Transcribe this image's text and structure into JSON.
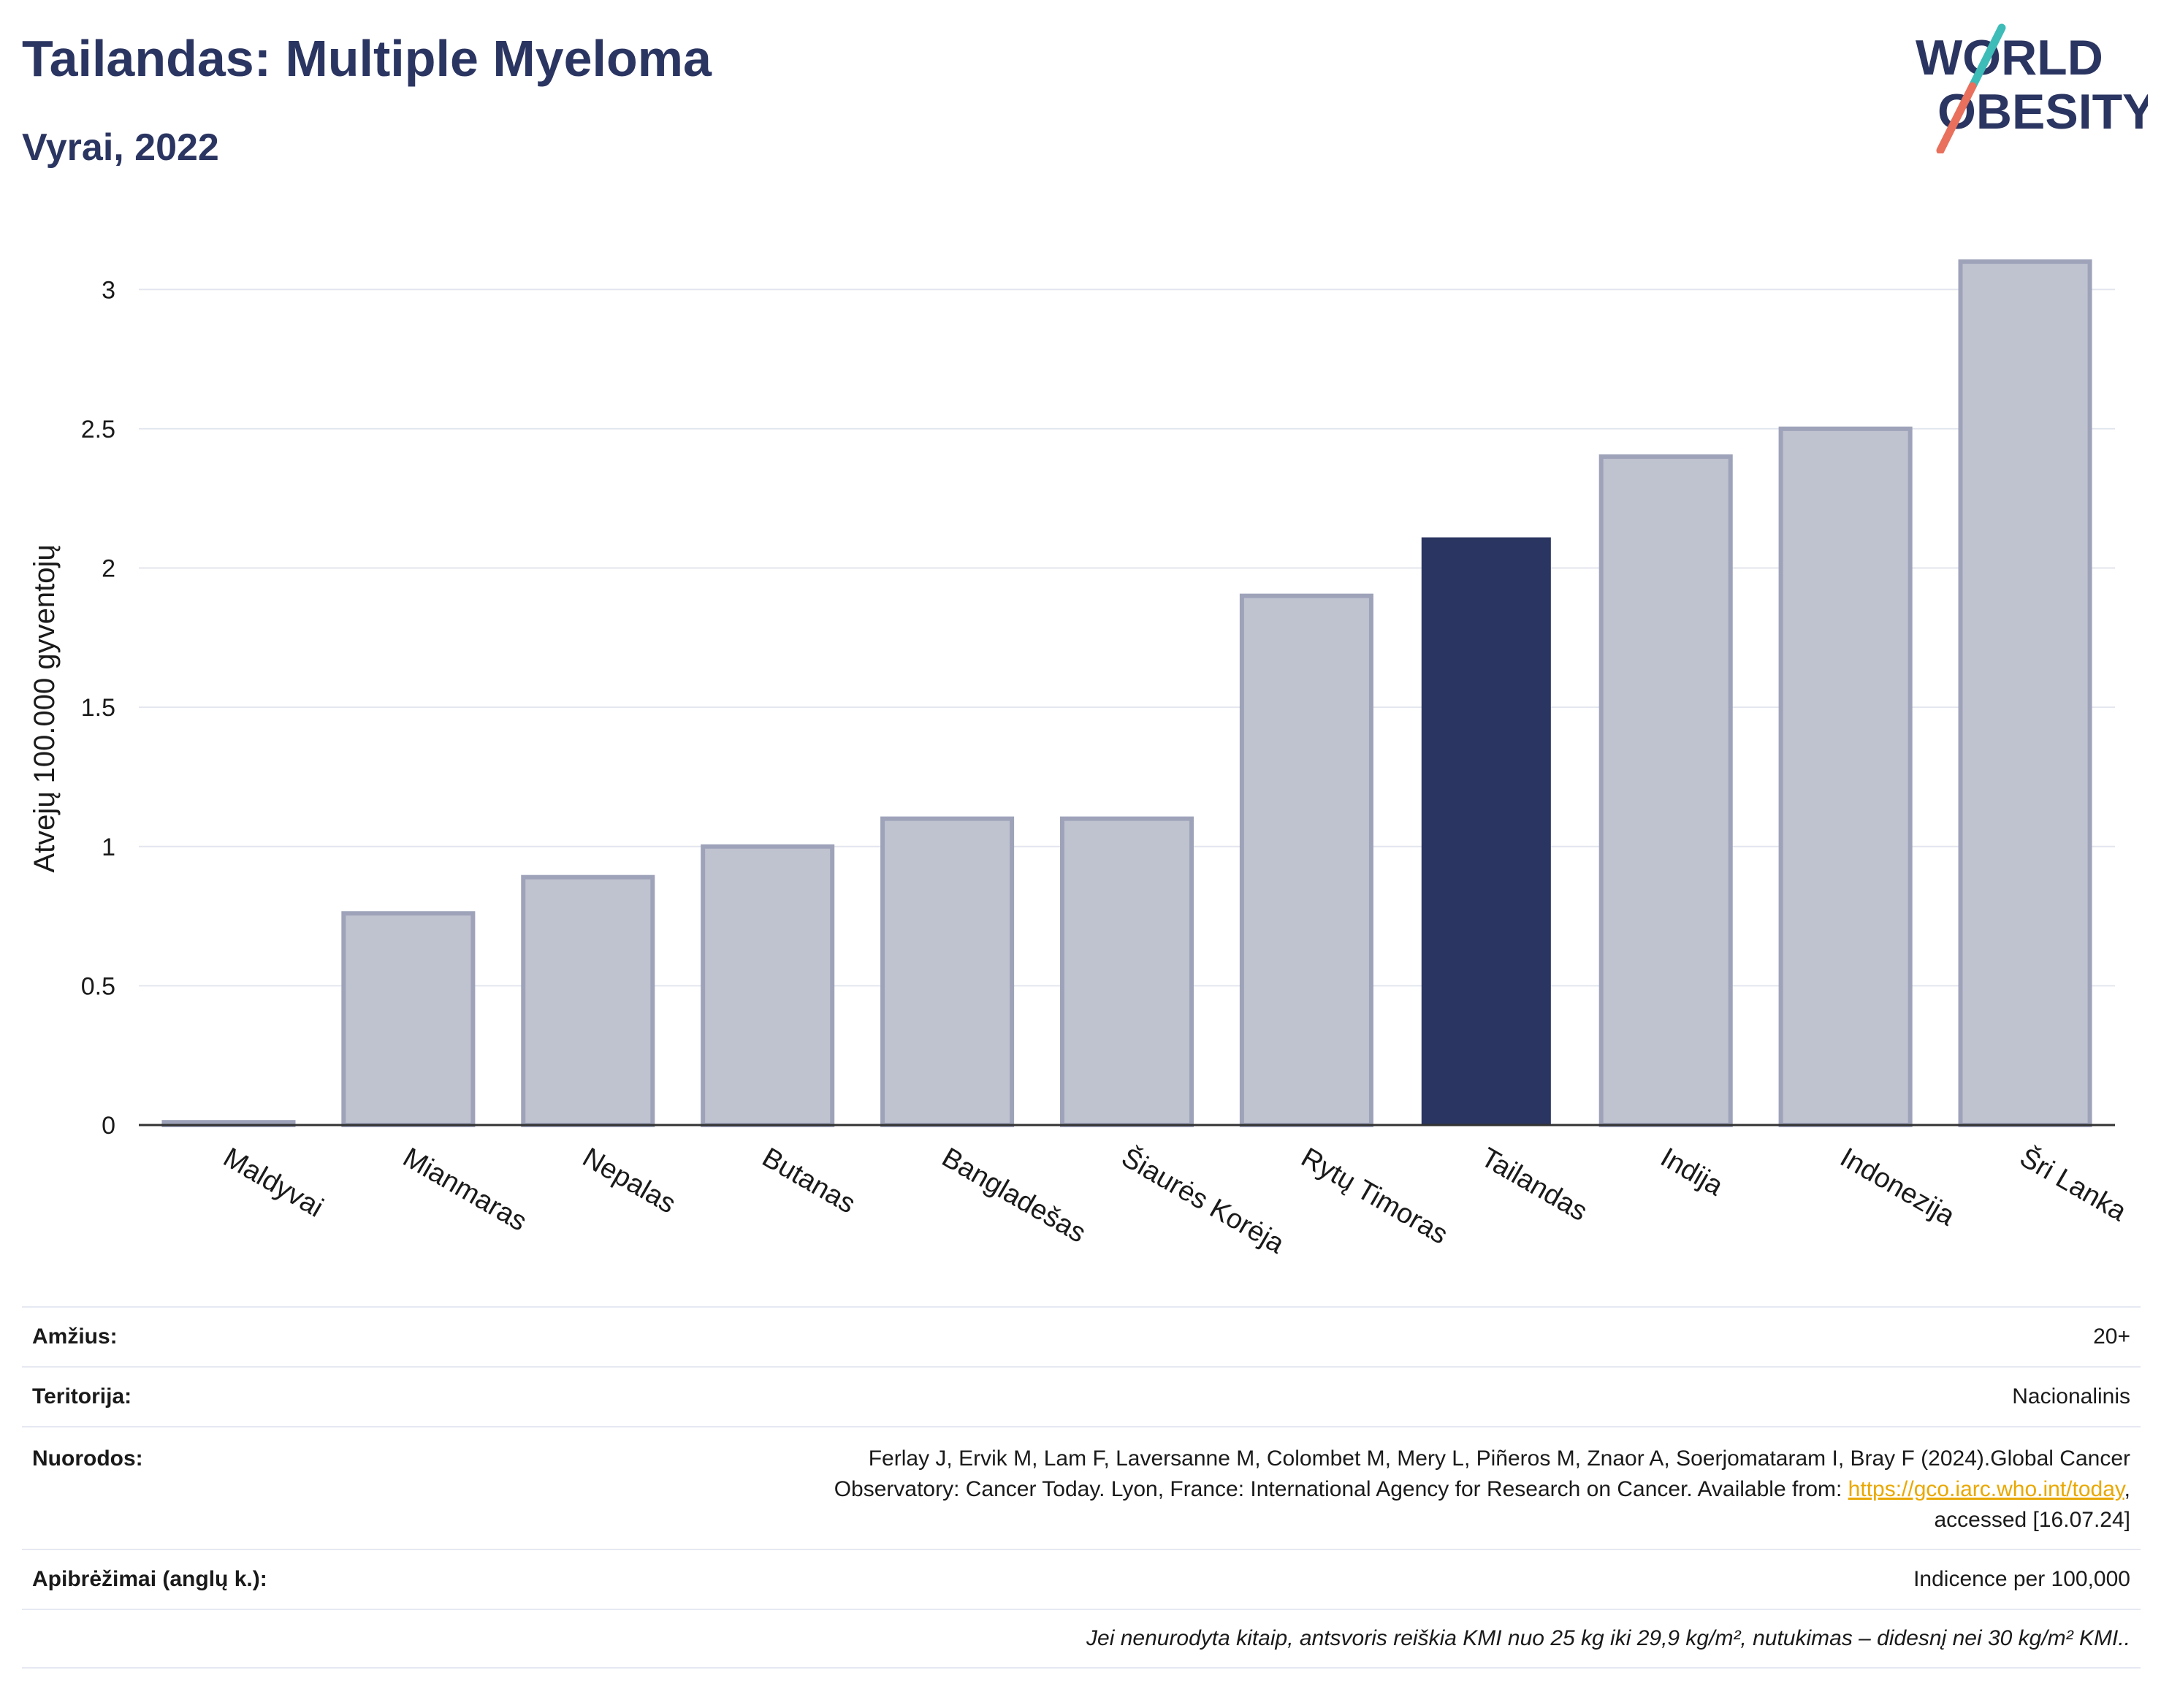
{
  "header": {
    "title": "Tailandas: Multiple Myeloma",
    "subtitle": "Vyrai, 2022"
  },
  "logo": {
    "line1": "WORLD",
    "line2": "OBESITY",
    "icon": "world-obesity-slash-logo",
    "colors": {
      "text": "#2b3561",
      "slash_top": "#3dbcb8",
      "slash_bottom": "#e8705c"
    }
  },
  "chart_data": {
    "type": "bar",
    "ylabel": "Atvejų 100.000 gyventojų",
    "ylim": [
      0,
      3.2
    ],
    "yticks": [
      0,
      0.5,
      1,
      1.5,
      2,
      2.5,
      3
    ],
    "ytick_labels": [
      "0",
      "0.5",
      "1",
      "1.5",
      "2",
      "2.5",
      "3"
    ],
    "grid": true,
    "categories": [
      "Maldyvai",
      "Mianmaras",
      "Nepalas",
      "Butanas",
      "Bangladešas",
      "Šiaurės Korėja",
      "Rytų Timoras",
      "Tailandas",
      "Indija",
      "Indonezija",
      "Šri Lanka"
    ],
    "values": [
      0.01,
      0.76,
      0.89,
      1.0,
      1.1,
      1.1,
      1.9,
      2.11,
      2.4,
      2.5,
      3.1
    ],
    "highlight": "Tailandas",
    "colors": {
      "bar": "#bfc2cf",
      "bar_border": "#9ea3ba",
      "highlight": "#2b3561"
    }
  },
  "footer": {
    "rows": [
      {
        "key": "Amžius:",
        "value": "20+"
      },
      {
        "key": "Teritorija:",
        "value": "Nacionalinis"
      },
      {
        "key": "Nuorodos:",
        "value_line1": "Ferlay J, Ervik M, Lam F, Laversanne M, Colombet M, Mery L, Piñeros M, Znaor A, Soerjomataram I, Bray F (2024).Global Cancer",
        "value_line2_pre": "Observatory: Cancer Today. Lyon, France: International Agency for Research on Cancer. Available from: ",
        "link": "https://gco.iarc.who.int/today",
        "value_line2_post": ",",
        "value_line3": "accessed [16.07.24]"
      },
      {
        "key": "Apibrėžimai (anglų k.):",
        "value": "Indicence per 100,000"
      }
    ],
    "note": "Jei nenurodyta kitaip, antsvoris reiškia KMI nuo 25 kg iki 29,9 kg/m², nutukimas – didesnį nei 30 kg/m² KMI.."
  }
}
